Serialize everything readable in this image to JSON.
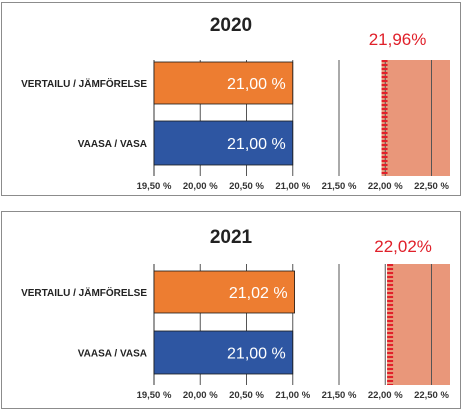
{
  "chart_data": [
    {
      "type": "bar",
      "title": "2020",
      "categories": [
        "VERTAILU / JÄMFÖRELSE",
        "VAASA / VASA"
      ],
      "values": [
        21.0,
        21.0
      ],
      "value_labels": [
        "21,00 %",
        "21,00 %"
      ],
      "xlim": [
        19.5,
        22.7
      ],
      "xticks": [
        19.5,
        20.0,
        20.5,
        21.0,
        21.5,
        22.0,
        22.5
      ],
      "xtick_labels": [
        "19,50 %",
        "20,00 %",
        "20,50 %",
        "21,00 %",
        "21,50 %",
        "22,00 %",
        "22,50 %"
      ],
      "band": {
        "from": 21.96,
        "to": 22.7,
        "label": "21,96%"
      },
      "colors": [
        "#ed7d31",
        "#2e56a2"
      ],
      "band_color": "#e9977a",
      "marker_color": "#e0202a",
      "grid": true
    },
    {
      "type": "bar",
      "title": "2021",
      "categories": [
        "VERTAILU / JÄMFÖRELSE",
        "VAASA / VASA"
      ],
      "values": [
        21.02,
        21.0
      ],
      "value_labels": [
        "21,02 %",
        "21,00 %"
      ],
      "xlim": [
        19.5,
        22.7
      ],
      "xticks": [
        19.5,
        20.0,
        20.5,
        21.0,
        21.5,
        22.0,
        22.5
      ],
      "xtick_labels": [
        "19,50 %",
        "20,00 %",
        "20,50 %",
        "21,00 %",
        "21,50 %",
        "22,00 %",
        "22,50 %"
      ],
      "band": {
        "from": 22.02,
        "to": 22.7,
        "label": "22,02%"
      },
      "colors": [
        "#ed7d31",
        "#2e56a2"
      ],
      "band_color": "#e9977a",
      "marker_color": "#e0202a",
      "grid": true
    }
  ]
}
